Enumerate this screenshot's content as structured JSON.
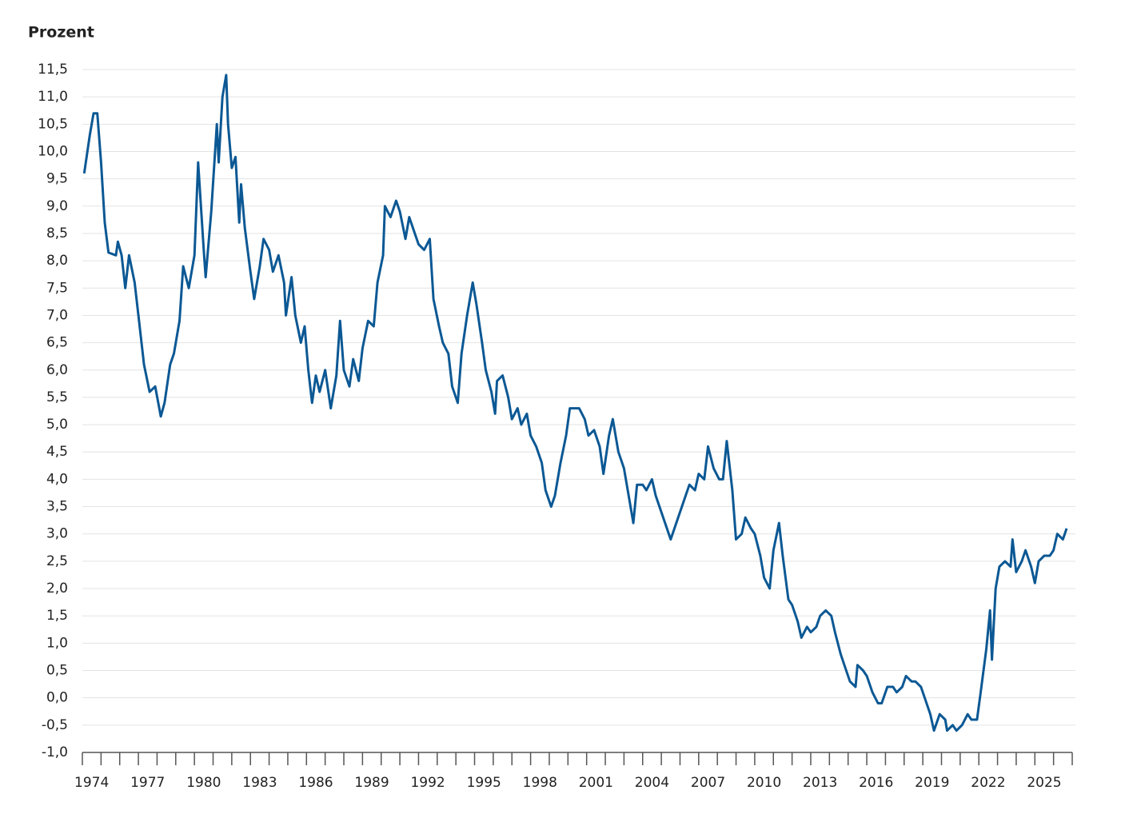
{
  "chart_data": {
    "type": "line",
    "ylabel": "Prozent",
    "color": "#0b5894",
    "grid": true,
    "xlim": [
      1974,
      2027
    ],
    "xticks": [
      {
        "value": 1974,
        "label": "1974"
      },
      {
        "value": 1977,
        "label": "1977"
      },
      {
        "value": 1980,
        "label": "1980"
      },
      {
        "value": 1983,
        "label": "1983"
      },
      {
        "value": 1986,
        "label": "1986"
      },
      {
        "value": 1989,
        "label": "1989"
      },
      {
        "value": 1992,
        "label": "1992"
      },
      {
        "value": 1995,
        "label": "1995"
      },
      {
        "value": 1998,
        "label": "1998"
      },
      {
        "value": 2001,
        "label": "2001"
      },
      {
        "value": 2004,
        "label": "2004"
      },
      {
        "value": 2007,
        "label": "2007"
      },
      {
        "value": 2010,
        "label": "2010"
      },
      {
        "value": 2013,
        "label": "2013"
      },
      {
        "value": 2016,
        "label": "2016"
      },
      {
        "value": 2019,
        "label": "2019"
      },
      {
        "value": 2022,
        "label": "2022"
      },
      {
        "value": 2025,
        "label": "2025"
      }
    ],
    "xminorticks": [
      1974,
      1975,
      1976,
      1977,
      1978,
      1979,
      1980,
      1981,
      1982,
      1983,
      1984,
      1985,
      1986,
      1987,
      1988,
      1989,
      1990,
      1991,
      1992,
      1993,
      1994,
      1995,
      1996,
      1997,
      1998,
      1999,
      2000,
      2001,
      2002,
      2003,
      2004,
      2005,
      2006,
      2007,
      2008,
      2009,
      2010,
      2011,
      2012,
      2013,
      2014,
      2015,
      2016,
      2017,
      2018,
      2019,
      2020,
      2021,
      2022,
      2023,
      2024,
      2025,
      2026,
      2027
    ],
    "ylim": [
      -1,
      11.5
    ],
    "yticks": [
      {
        "value": -1,
        "label": "-1,0"
      },
      {
        "value": -0.5,
        "label": "-0,5"
      },
      {
        "value": 0,
        "label": "0,0"
      },
      {
        "value": 0.5,
        "label": "0,5"
      },
      {
        "value": 1,
        "label": "1,0"
      },
      {
        "value": 1.5,
        "label": "1,5"
      },
      {
        "value": 2,
        "label": "2,0"
      },
      {
        "value": 2.5,
        "label": "2,5"
      },
      {
        "value": 3,
        "label": "3,0"
      },
      {
        "value": 3.5,
        "label": "3,5"
      },
      {
        "value": 4,
        "label": "4,0"
      },
      {
        "value": 4.5,
        "label": "4,5"
      },
      {
        "value": 5,
        "label": "5,0"
      },
      {
        "value": 5.5,
        "label": "5,5"
      },
      {
        "value": 6,
        "label": "6,0"
      },
      {
        "value": 6.5,
        "label": "6,5"
      },
      {
        "value": 7,
        "label": "7,0"
      },
      {
        "value": 7.5,
        "label": "7,5"
      },
      {
        "value": 8,
        "label": "8,0"
      },
      {
        "value": 8.5,
        "label": "8,5"
      },
      {
        "value": 9,
        "label": "9,0"
      },
      {
        "value": 9.5,
        "label": "9,5"
      },
      {
        "value": 10,
        "label": "10,0"
      },
      {
        "value": 10.5,
        "label": "10,5"
      },
      {
        "value": 11,
        "label": "11,0"
      },
      {
        "value": 11.5,
        "label": "11,5"
      }
    ],
    "x": [
      1974.1,
      1974.4,
      1974.6,
      1974.8,
      1975.0,
      1975.2,
      1975.4,
      1975.8,
      1975.9,
      1976.1,
      1976.3,
      1976.5,
      1976.8,
      1977.0,
      1977.3,
      1977.6,
      1977.9,
      1978.2,
      1978.4,
      1978.7,
      1978.9,
      1979.2,
      1979.4,
      1979.7,
      1980.0,
      1980.2,
      1980.5,
      1980.6,
      1980.9,
      1981.2,
      1981.3,
      1981.5,
      1981.7,
      1981.8,
      1982.0,
      1982.2,
      1982.4,
      1982.5,
      1982.7,
      1983.0,
      1983.2,
      1983.5,
      1983.7,
      1984.0,
      1984.2,
      1984.5,
      1984.8,
      1984.9,
      1985.2,
      1985.4,
      1985.7,
      1985.9,
      1986.1,
      1986.3,
      1986.5,
      1986.7,
      1987.0,
      1987.3,
      1987.6,
      1987.8,
      1988.0,
      1988.3,
      1988.5,
      1988.8,
      1989.0,
      1989.3,
      1989.6,
      1989.8,
      1990.1,
      1990.2,
      1990.5,
      1990.8,
      1991.0,
      1991.3,
      1991.5,
      1991.8,
      1992.0,
      1992.3,
      1992.6,
      1992.8,
      1993.1,
      1993.3,
      1993.6,
      1993.8,
      1994.1,
      1994.3,
      1994.6,
      1994.9,
      1995.1,
      1995.4,
      1995.6,
      1995.9,
      1996.1,
      1996.2,
      1996.5,
      1996.8,
      1997.0,
      1997.3,
      1997.5,
      1997.8,
      1998.0,
      1998.3,
      1998.6,
      1998.8,
      1999.1,
      1999.3,
      1999.6,
      1999.9,
      2000.1,
      2000.4,
      2000.6,
      2000.9,
      2001.1,
      2001.4,
      2001.7,
      2001.9,
      2002.2,
      2002.4,
      2002.7,
      2003.0,
      2003.2,
      2003.5,
      2003.7,
      2004.0,
      2004.2,
      2004.5,
      2004.7,
      2005.0,
      2005.2,
      2005.5,
      2005.8,
      2006.0,
      2006.3,
      2006.5,
      2006.8,
      2007.0,
      2007.3,
      2007.5,
      2007.8,
      2008.1,
      2008.3,
      2008.5,
      2008.8,
      2009.0,
      2009.3,
      2009.5,
      2009.8,
      2010.0,
      2010.3,
      2010.5,
      2010.8,
      2011.0,
      2011.3,
      2011.5,
      2011.8,
      2012.0,
      2012.3,
      2012.5,
      2012.8,
      2013.0,
      2013.3,
      2013.5,
      2013.8,
      2014.1,
      2014.3,
      2014.6,
      2014.8,
      2015.1,
      2015.4,
      2015.5,
      2015.8,
      2016.0,
      2016.3,
      2016.6,
      2016.8,
      2017.1,
      2017.4,
      2017.6,
      2017.9,
      2018.1,
      2018.4,
      2018.6,
      2018.9,
      2019.1,
      2019.4,
      2019.6,
      2019.9,
      2020.2,
      2020.3,
      2020.6,
      2020.8,
      2021.1,
      2021.4,
      2021.6,
      2021.9,
      2022.1,
      2022.4,
      2022.6,
      2022.7,
      2022.9,
      2023.1,
      2023.4,
      2023.7,
      2023.8,
      2024.0,
      2024.3,
      2024.5,
      2024.8,
      2025.0,
      2025.2,
      2025.5,
      2025.8,
      2026.0,
      2026.2,
      2026.5,
      2026.7
    ],
    "values": [
      9.6,
      10.3,
      10.7,
      10.7,
      9.8,
      8.7,
      8.15,
      8.1,
      8.35,
      8.1,
      7.5,
      8.1,
      7.6,
      7.0,
      6.1,
      5.6,
      5.7,
      5.15,
      5.4,
      6.1,
      6.3,
      6.9,
      7.9,
      7.5,
      8.1,
      9.8,
      8.2,
      7.7,
      8.9,
      10.5,
      9.8,
      11.0,
      11.4,
      10.5,
      9.7,
      9.9,
      8.7,
      9.4,
      8.6,
      7.8,
      7.3,
      7.9,
      8.4,
      8.2,
      7.8,
      8.1,
      7.6,
      7.0,
      7.7,
      7.0,
      6.5,
      6.8,
      6.0,
      5.4,
      5.9,
      5.6,
      6.0,
      5.3,
      5.9,
      6.9,
      6.0,
      5.7,
      6.2,
      5.8,
      6.4,
      6.9,
      6.8,
      7.6,
      8.1,
      9.0,
      8.8,
      9.1,
      8.9,
      8.4,
      8.8,
      8.5,
      8.3,
      8.2,
      8.4,
      7.3,
      6.8,
      6.5,
      6.3,
      5.7,
      5.4,
      6.3,
      7.0,
      7.6,
      7.2,
      6.5,
      6.0,
      5.6,
      5.2,
      5.8,
      5.9,
      5.5,
      5.1,
      5.3,
      5.0,
      5.2,
      4.8,
      4.6,
      4.3,
      3.8,
      3.5,
      3.7,
      4.3,
      4.8,
      5.3,
      5.3,
      5.3,
      5.1,
      4.8,
      4.9,
      4.6,
      4.1,
      4.8,
      5.1,
      4.5,
      4.2,
      3.8,
      3.2,
      3.9,
      3.9,
      3.8,
      4.0,
      3.7,
      3.4,
      3.2,
      2.9,
      3.2,
      3.4,
      3.7,
      3.9,
      3.8,
      4.1,
      4.0,
      4.6,
      4.2,
      4.0,
      4.0,
      4.7,
      3.8,
      2.9,
      3.0,
      3.3,
      3.1,
      3.0,
      2.6,
      2.2,
      2.0,
      2.7,
      3.2,
      2.6,
      1.8,
      1.7,
      1.4,
      1.1,
      1.3,
      1.2,
      1.3,
      1.5,
      1.6,
      1.5,
      1.2,
      0.8,
      0.6,
      0.3,
      0.2,
      0.6,
      0.5,
      0.4,
      0.1,
      -0.1,
      -0.1,
      0.2,
      0.2,
      0.1,
      0.2,
      0.4,
      0.3,
      0.3,
      0.2,
      0.0,
      -0.3,
      -0.6,
      -0.3,
      -0.4,
      -0.6,
      -0.5,
      -0.6,
      -0.5,
      -0.3,
      -0.4,
      -0.4,
      0.1,
      0.9,
      1.6,
      0.7,
      2.0,
      2.4,
      2.5,
      2.4,
      2.9,
      2.3,
      2.5,
      2.7,
      2.4,
      2.1,
      2.5,
      2.6,
      2.6,
      2.7,
      3.0,
      2.9,
      3.1
    ]
  }
}
